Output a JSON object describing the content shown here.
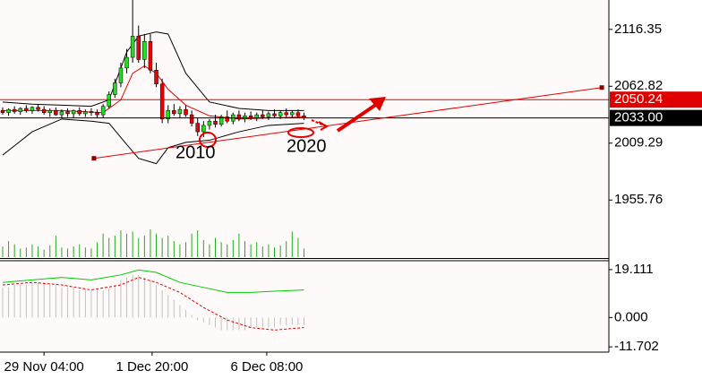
{
  "chart_data": [
    {
      "type": "candlestick",
      "xlim": [
        -0.45,
        102.6
      ],
      "ylim": [
        1902,
        2144
      ],
      "yticks": [
        2116.35,
        2062.82,
        2009.29,
        1955.76
      ],
      "up_color": "#22dd22",
      "down_color": "#ee0000",
      "ohlc": [
        [
          2040,
          2043,
          2036,
          2038
        ],
        [
          2038,
          2042,
          2035,
          2041
        ],
        [
          2041,
          2044,
          2037,
          2039
        ],
        [
          2039,
          2043,
          2036,
          2042
        ],
        [
          2042,
          2045,
          2038,
          2040
        ],
        [
          2040,
          2044,
          2037,
          2043
        ],
        [
          2043,
          2046,
          2039,
          2041
        ],
        [
          2041,
          2044,
          2036,
          2038
        ],
        [
          2038,
          2042,
          2034,
          2040
        ],
        [
          2040,
          2043,
          2035,
          2036
        ],
        [
          2036,
          2041,
          2033,
          2039
        ],
        [
          2039,
          2042,
          2034,
          2037
        ],
        [
          2037,
          2041,
          2033,
          2040
        ],
        [
          2040,
          2043,
          2035,
          2037
        ],
        [
          2037,
          2041,
          2034,
          2039
        ],
        [
          2039,
          2042,
          2035,
          2038
        ],
        [
          2038,
          2041,
          2033,
          2036
        ],
        [
          2036,
          2046,
          2033,
          2044
        ],
        [
          2044,
          2058,
          2042,
          2055
        ],
        [
          2055,
          2070,
          2052,
          2066
        ],
        [
          2066,
          2085,
          2062,
          2080
        ],
        [
          2080,
          2098,
          2075,
          2090
        ],
        [
          2090,
          2145,
          2085,
          2110
        ],
        [
          2110,
          2120,
          2085,
          2088
        ],
        [
          2088,
          2112,
          2080,
          2105
        ],
        [
          2105,
          2112,
          2075,
          2078
        ],
        [
          2078,
          2085,
          2062,
          2065
        ],
        [
          2065,
          2070,
          2028,
          2032
        ],
        [
          2032,
          2045,
          2028,
          2040
        ],
        [
          2040,
          2046,
          2035,
          2037
        ],
        [
          2037,
          2044,
          2033,
          2041
        ],
        [
          2041,
          2045,
          2034,
          2036
        ],
        [
          2036,
          2040,
          2025,
          2028
        ],
        [
          2028,
          2033,
          2016,
          2020
        ],
        [
          2020,
          2030,
          2015,
          2026
        ],
        [
          2026,
          2032,
          2022,
          2030
        ],
        [
          2030,
          2036,
          2024,
          2027
        ],
        [
          2027,
          2036,
          2025,
          2034
        ],
        [
          2034,
          2040,
          2028,
          2030
        ],
        [
          2030,
          2038,
          2027,
          2036
        ],
        [
          2036,
          2040,
          2030,
          2032
        ],
        [
          2032,
          2038,
          2029,
          2035
        ],
        [
          2035,
          2039,
          2031,
          2033
        ],
        [
          2033,
          2038,
          2030,
          2036
        ],
        [
          2036,
          2040,
          2032,
          2034
        ],
        [
          2034,
          2039,
          2031,
          2037
        ],
        [
          2037,
          2041,
          2033,
          2035
        ],
        [
          2035,
          2040,
          2032,
          2038
        ],
        [
          2038,
          2042,
          2034,
          2036
        ],
        [
          2036,
          2040,
          2033,
          2038
        ],
        [
          2038,
          2041,
          2033,
          2035
        ],
        [
          2035,
          2038,
          2031,
          2033
        ]
      ],
      "volume": [
        10,
        15,
        12,
        8,
        9,
        12,
        10,
        7,
        11,
        20,
        9,
        8,
        10,
        12,
        9,
        8,
        14,
        22,
        18,
        20,
        25,
        22,
        24,
        18,
        20,
        26,
        22,
        18,
        20,
        15,
        12,
        14,
        22,
        25,
        16,
        12,
        18,
        14,
        12,
        16,
        22,
        15,
        12,
        14,
        10,
        12,
        9,
        11,
        15,
        24,
        18,
        8
      ],
      "volume_lim": [
        0,
        240
      ],
      "volume_color": "#22aa22",
      "bands": [
        {
          "color": "#000000",
          "x": [
            0,
            5,
            10,
            15,
            18,
            21,
            23,
            26,
            28,
            31,
            35,
            40,
            45,
            51
          ],
          "values": [
            2048,
            2046,
            2045,
            2044,
            2050,
            2095,
            2110,
            2114,
            2112,
            2075,
            2048,
            2042,
            2040,
            2040
          ]
        },
        {
          "color": "#e00000",
          "x": [
            0,
            10,
            17,
            20,
            22,
            24,
            26,
            28,
            31,
            35,
            40,
            45,
            51
          ],
          "values": [
            2040,
            2040,
            2038,
            2050,
            2075,
            2082,
            2075,
            2060,
            2045,
            2035,
            2032,
            2033,
            2034
          ]
        },
        {
          "color": "#000000",
          "x": [
            0,
            5,
            10,
            15,
            18,
            21,
            23,
            26,
            28,
            31,
            35,
            40,
            45,
            51
          ],
          "values": [
            1998,
            2020,
            2032,
            2030,
            2028,
            2008,
            1995,
            1990,
            2005,
            2010,
            2012,
            2020,
            2026,
            2028
          ]
        }
      ],
      "hlines": [
        {
          "value": 2050.24,
          "label": "2050.24",
          "color": "#e00000"
        },
        {
          "value": 2033,
          "label": "2033.00",
          "color": "#000000"
        }
      ],
      "trendline": {
        "color": "#e00000",
        "x": [
          15.45,
          101.4
        ],
        "values": [
          1995,
          2061.6
        ]
      },
      "annotations": [
        "2010",
        "2020"
      ]
    },
    {
      "type": "macd",
      "xlim": [
        -0.45,
        102.6
      ],
      "ylim": [
        -13.8,
        22.65
      ],
      "yticks": [
        19.111,
        {
          "value": 0,
          "label": "0.000"
        },
        -11.702
      ],
      "histogram": [
        12,
        12,
        13,
        13,
        13,
        14,
        14,
        14,
        13,
        13,
        12,
        12,
        12,
        11,
        11,
        11,
        11,
        11,
        12,
        13,
        15,
        16,
        17,
        17,
        16,
        15,
        13,
        11,
        9,
        7,
        5,
        3,
        1,
        -1,
        -2,
        -3,
        -4,
        -5,
        -5,
        -5,
        -5,
        -5,
        -4,
        -4,
        -4,
        -4,
        -4,
        -3,
        -3,
        -3,
        -3,
        -3
      ],
      "histogram_color": "#c0c0c0",
      "lines": [
        {
          "color": "#00cc00",
          "dashed": false,
          "x": [
            0,
            5,
            10,
            15,
            20,
            23,
            26,
            30,
            34,
            38,
            42,
            46,
            51
          ],
          "values": [
            14,
            15,
            16,
            15,
            17,
            19,
            18,
            14,
            12,
            10,
            10,
            10.5,
            11
          ]
        },
        {
          "color": "#e00000",
          "dashed": true,
          "x": [
            0,
            5,
            10,
            15,
            20,
            23,
            26,
            30,
            34,
            38,
            42,
            46,
            51
          ],
          "values": [
            13,
            14,
            13,
            11,
            13,
            16,
            14,
            10,
            4,
            -1,
            -4,
            -5,
            -4
          ]
        }
      ],
      "xticks": [
        {
          "value": 7,
          "label": "29 Nov 04:00"
        },
        {
          "value": 25.3,
          "label": "1 Dec 20:00"
        },
        {
          "value": 44.7,
          "label": "6 Dec 08:00"
        }
      ]
    }
  ]
}
